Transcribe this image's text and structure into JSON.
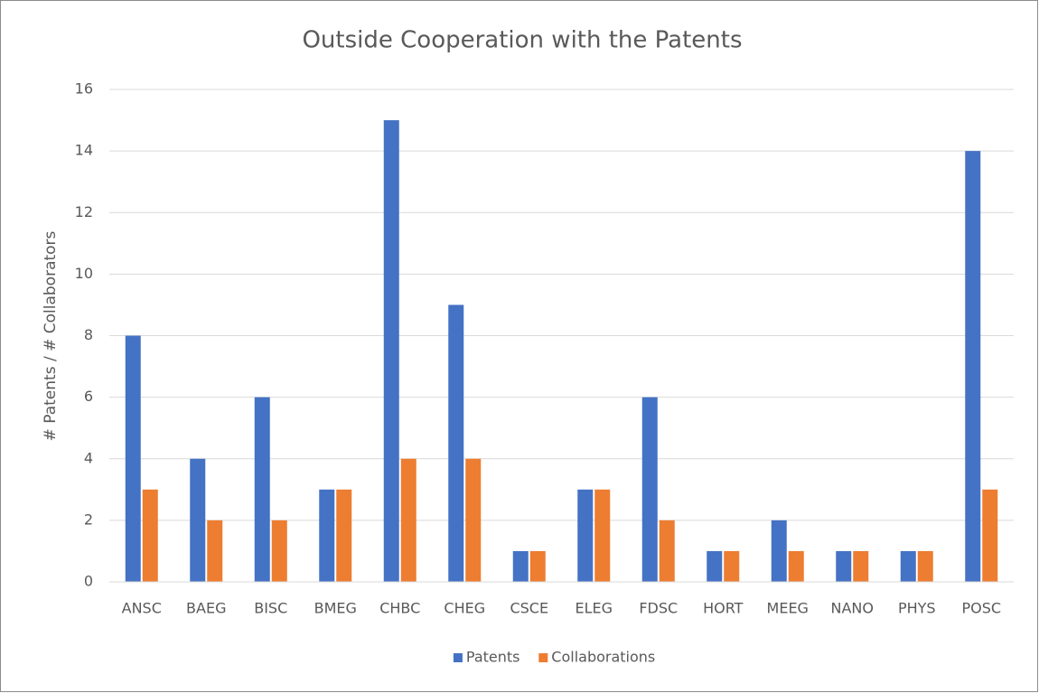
{
  "chart_data": {
    "type": "bar",
    "title": "Outside Cooperation with the Patents",
    "y_label": "# Patents / # Collaborators",
    "categories": [
      "ANSC",
      "BAEG",
      "BISC",
      "BMEG",
      "CHBC",
      "CHEG",
      "CSCE",
      "ELEG",
      "FDSC",
      "HORT",
      "MEEG",
      "NANO",
      "PHYS",
      "POSC"
    ],
    "series": [
      {
        "name": "Patents",
        "color": "#4472c4",
        "values": [
          8,
          4,
          6,
          3,
          15,
          9,
          1,
          3,
          6,
          1,
          2,
          1,
          1,
          14
        ]
      },
      {
        "name": "Collaborations",
        "color": "#ed7d31",
        "values": [
          3,
          2,
          2,
          3,
          4,
          4,
          1,
          3,
          2,
          1,
          1,
          1,
          1,
          3
        ]
      }
    ],
    "ylim": [
      0,
      16
    ],
    "yticks": [
      0,
      2,
      4,
      6,
      8,
      10,
      12,
      14,
      16
    ],
    "grid": true,
    "legend": "bottom"
  }
}
